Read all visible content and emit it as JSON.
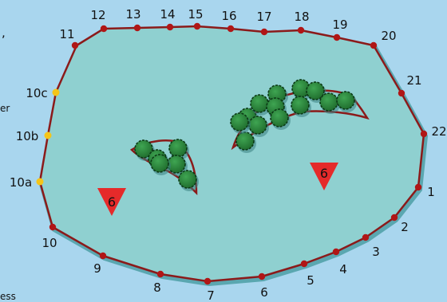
{
  "colors": {
    "background": "#a9d6ee",
    "green_fill": "#8fd0d0",
    "boundary": "#8b1a1a",
    "boundary_shadow": "#5aa7b0",
    "post": "#b01616",
    "aux_post": "#f5c518",
    "tree": "#2f8a3c",
    "tree_dark": "#0c3a16",
    "marker": "#e52a2a"
  },
  "posts": [
    {
      "label": "1"
    },
    {
      "label": "2"
    },
    {
      "label": "3"
    },
    {
      "label": "4"
    },
    {
      "label": "5"
    },
    {
      "label": "6"
    },
    {
      "label": "7"
    },
    {
      "label": "8"
    },
    {
      "label": "9"
    },
    {
      "label": "10"
    },
    {
      "label": "11"
    },
    {
      "label": "12"
    },
    {
      "label": "13"
    },
    {
      "label": "14"
    },
    {
      "label": "15"
    },
    {
      "label": "16"
    },
    {
      "label": "17"
    },
    {
      "label": "18"
    },
    {
      "label": "19"
    },
    {
      "label": "20"
    },
    {
      "label": "21"
    },
    {
      "label": "22"
    }
  ],
  "aux_posts": [
    {
      "label": "10a"
    },
    {
      "label": "10b"
    },
    {
      "label": "10c"
    }
  ],
  "markers": [
    {
      "label": "6",
      "shape": "triangle-down"
    },
    {
      "label": "6",
      "shape": "triangle-down"
    }
  ],
  "edge_text": [
    {
      "text": ","
    },
    {
      "text": "er"
    },
    {
      "text": "ess"
    }
  ],
  "tree_clusters": [
    {
      "name": "left-grove",
      "count": 6
    },
    {
      "name": "right-grove",
      "count": 13
    }
  ]
}
